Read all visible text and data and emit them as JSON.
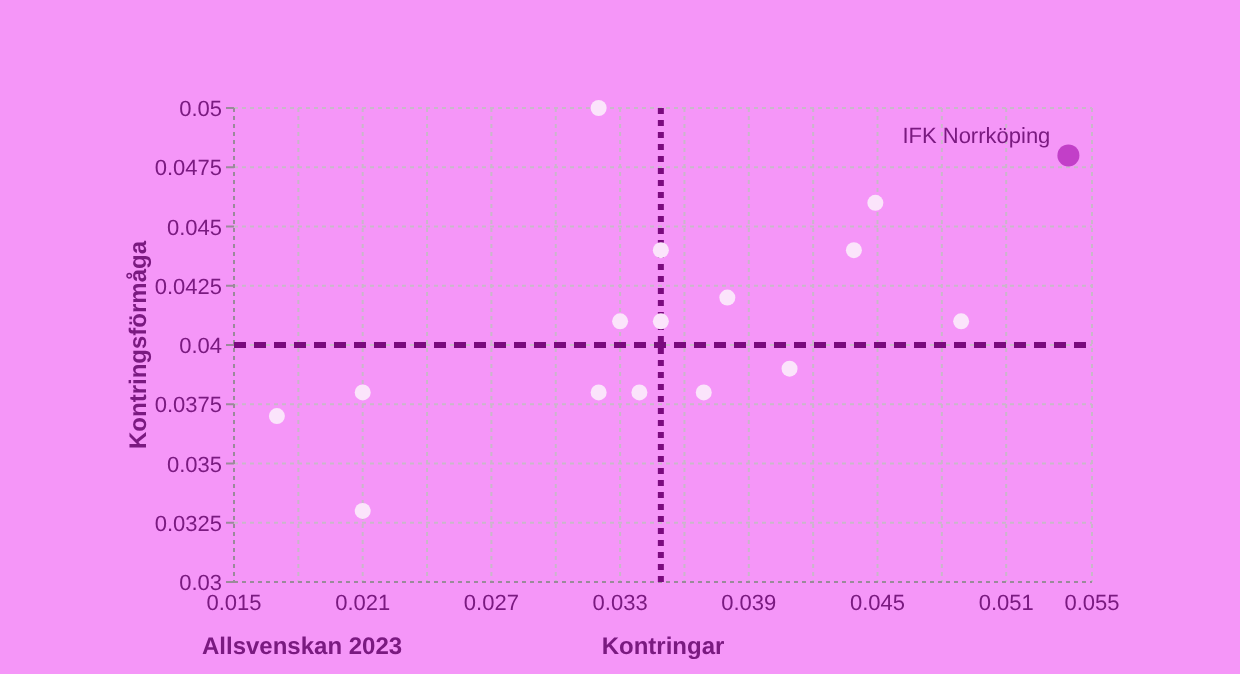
{
  "chart_data": {
    "type": "scatter",
    "xlabel": "Kontringar",
    "ylabel": "Kontringsförmåga",
    "annotations": [
      "Allsvenskan 2023"
    ],
    "xlim": [
      0.015,
      0.055
    ],
    "xticks": [
      0.015,
      {
        "value": 0.018,
        "label": null
      },
      0.021,
      {
        "value": 0.024,
        "label": null
      },
      0.027,
      {
        "value": 0.03,
        "label": null
      },
      0.033,
      {
        "value": 0.036,
        "label": null
      },
      0.039,
      {
        "value": 0.042,
        "label": null
      },
      0.045,
      {
        "value": 0.048,
        "label": null
      },
      0.051,
      0.055
    ],
    "ylim": [
      0.03,
      0.05
    ],
    "yticks": [
      0.03,
      0.0325,
      0.035,
      0.0375,
      0.04,
      0.0425,
      0.045,
      0.0475,
      0.05
    ],
    "grid": true,
    "marker": "circle",
    "ref_lines": [
      {
        "axis": "x",
        "value": 0.0349,
        "color": "#7a0a7e",
        "line_style": "dotted"
      },
      {
        "axis": "y",
        "value": 0.04,
        "color": "#7a0a7e",
        "line_style": "dashed"
      }
    ],
    "series": [
      {
        "color": "#fbe4fb",
        "x": [
          0.017,
          0.021,
          0.021,
          0.032,
          0.033,
          0.0349,
          0.0349,
          0.032,
          0.0339,
          0.0369,
          0.0449,
          0.0439,
          0.038,
          0.0489,
          0.0409
        ],
        "values": [
          0.037,
          0.038,
          0.033,
          0.05,
          0.041,
          0.044,
          0.041,
          0.038,
          0.038,
          0.038,
          0.046,
          0.044,
          0.042,
          0.041,
          0.039
        ]
      },
      {
        "name": "IFK Norrköping",
        "color": "#c23fc8",
        "x": [
          0.0539
        ],
        "values": [
          0.048
        ]
      }
    ]
  }
}
